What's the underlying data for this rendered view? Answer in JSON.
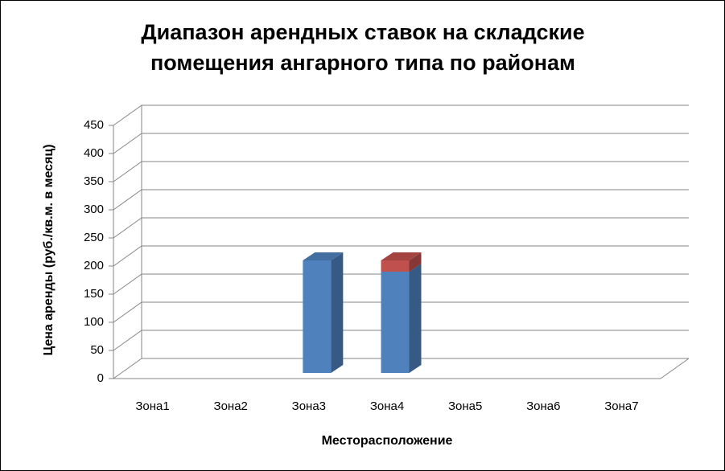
{
  "chart_data": {
    "type": "bar3d-stacked",
    "title": "Диапазон арендных ставок на складские помещения ангарного типа по районам",
    "x_label": "Месторасположение",
    "y_label": "Цена аренды (руб./кв.м. в месяц)",
    "categories": [
      "Зона1",
      "Зона2",
      "Зона3",
      "Зона4",
      "Зона5",
      "Зона6",
      "Зона7"
    ],
    "series": [
      {
        "color": "#4f81bd",
        "values": [
          null,
          null,
          200,
          180,
          null,
          null,
          null
        ]
      },
      {
        "color": "#c0504d",
        "values": [
          null,
          null,
          null,
          20,
          null,
          null,
          null
        ]
      }
    ],
    "ylim": [
      0,
      450
    ],
    "yticks": [
      0,
      50,
      100,
      150,
      200,
      250,
      300,
      350,
      400,
      450
    ],
    "grid": true
  }
}
